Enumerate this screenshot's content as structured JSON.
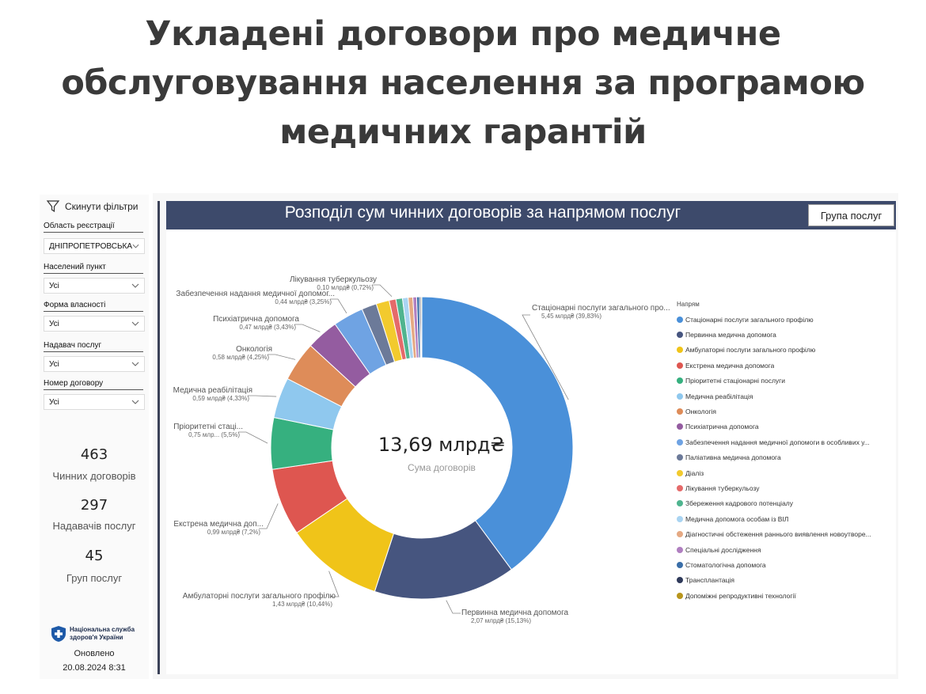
{
  "page": {
    "headline_lines": [
      "Укладені договори про медичне",
      "обслуговування населення за програмою",
      "медичних гарантій"
    ]
  },
  "filters": {
    "reset_label": "Скинути фільтри",
    "items": [
      {
        "label": "Область реєстрації",
        "value": "ДНІПРОПЕТРОВСЬКА"
      },
      {
        "label": "Населений пункт",
        "value": "Усі"
      },
      {
        "label": "Форма власності",
        "value": "Усі"
      },
      {
        "label": "Надавач послуг",
        "value": "Усі"
      },
      {
        "label": "Номер договору",
        "value": "Усі"
      }
    ]
  },
  "kpis": [
    {
      "value": "463",
      "label": "Чинних договорів"
    },
    {
      "value": "297",
      "label": "Надавачів послуг"
    },
    {
      "value": "45",
      "label": "Груп послуг"
    }
  ],
  "footer": {
    "logo_line1": "Національна служба",
    "logo_line2": "здоров'я України",
    "updated_label": "Оновлено",
    "updated_value": "20.08.2024 8:31"
  },
  "visual": {
    "title": "Розподіл сум чинних договорів за напрямом послуг",
    "group_button": "Група послуг",
    "center_value": "13,69 млрд₴",
    "center_label": "Сума договорів"
  },
  "chart_data": {
    "type": "pie",
    "variant": "donut",
    "total": "13,69 млрд₴",
    "legend_title": "Напрям",
    "legend_position": "right",
    "slices": [
      {
        "name": "Стаціонарні послуги загального профілю",
        "value": 5.45,
        "percent": 39.83,
        "color": "#4a90d9",
        "label": "Стаціонарні послуги загального про...",
        "value_label": "5,45 млрд₴ (39,83%)"
      },
      {
        "name": "Первинна медична допомога",
        "value": 2.07,
        "percent": 15.13,
        "color": "#46557f",
        "label": "Первинна медична допомога",
        "value_label": "2,07 млрд₴ (15,13%)"
      },
      {
        "name": "Амбулаторні послуги загального профілю",
        "value": 1.43,
        "percent": 10.44,
        "color": "#f0c419",
        "label": "Амбулаторні послуги загального профілю",
        "value_label": "1,43 млрд₴ (10,44%)"
      },
      {
        "name": "Екстрена медична допомога",
        "value": 0.99,
        "percent": 7.2,
        "color": "#de5650",
        "label": "Екстрена медична доп...",
        "value_label": "0,99 млрд₴ (7,2%)"
      },
      {
        "name": "Пріоритетні стаціонарні послуги",
        "value": 0.75,
        "percent": 5.5,
        "color": "#36b07f",
        "label": "Пріоритетні стаці...",
        "value_label": "0,75 млр... (5,5%)"
      },
      {
        "name": "Медична реабілітація",
        "value": 0.59,
        "percent": 4.33,
        "color": "#8fc8ee",
        "label": "Медична реабілітація",
        "value_label": "0,59 млрд₴ (4,33%)"
      },
      {
        "name": "Онкологія",
        "value": 0.58,
        "percent": 4.25,
        "color": "#de8c59",
        "label": "Онкологія",
        "value_label": "0,58 млрд₴ (4,25%)"
      },
      {
        "name": "Психіатрична допомога",
        "value": 0.47,
        "percent": 3.43,
        "color": "#945ca0",
        "label": "Психіатрична допомога",
        "value_label": "0,47 млрд₴ (3,43%)"
      },
      {
        "name": "Забезпечення надання медичної допомоги в особливих у...",
        "value": 0.44,
        "percent": 3.25,
        "color": "#6fa3e3",
        "label": "Забезпечення надання медичної допомог...",
        "value_label": "0,44 млрд₴ (3,25%)"
      },
      {
        "name": "Паліативна медична допомога",
        "value": null,
        "percent": 1.6,
        "color": "#6c7a99",
        "label": "",
        "value_label": ""
      },
      {
        "name": "Діаліз",
        "value": null,
        "percent": 1.4,
        "color": "#f2ca2e",
        "label": "",
        "value_label": ""
      },
      {
        "name": "Лікування туберкульозу",
        "value": 0.1,
        "percent": 0.72,
        "color": "#e56a6a",
        "label": "Лікування туберкульозу",
        "value_label": "0,10 млрд₴ (0,72%)"
      },
      {
        "name": "Збереження кадрового потенціалу",
        "value": null,
        "percent": 0.7,
        "color": "#4fb48f",
        "label": "",
        "value_label": ""
      },
      {
        "name": "Медична допомога особам із ВІЛ",
        "value": null,
        "percent": 0.6,
        "color": "#a9d4f2",
        "label": "",
        "value_label": ""
      },
      {
        "name": "Діагностичні обстеження раннього виявлення новоутворе...",
        "value": null,
        "percent": 0.5,
        "color": "#e5a983",
        "label": "",
        "value_label": ""
      },
      {
        "name": "Спеціальні дослідження",
        "value": null,
        "percent": 0.4,
        "color": "#b07fc0",
        "label": "",
        "value_label": ""
      },
      {
        "name": "Стоматологічна допомога",
        "value": null,
        "percent": 0.3,
        "color": "#3a6ea8",
        "label": "",
        "value_label": ""
      },
      {
        "name": "Трансплантація",
        "value": null,
        "percent": 0.15,
        "color": "#2f3a5a",
        "label": "",
        "value_label": ""
      },
      {
        "name": "Допоміжні репродуктивні технології",
        "value": null,
        "percent": 0.1,
        "color": "#b8951c",
        "label": "",
        "value_label": ""
      }
    ]
  }
}
